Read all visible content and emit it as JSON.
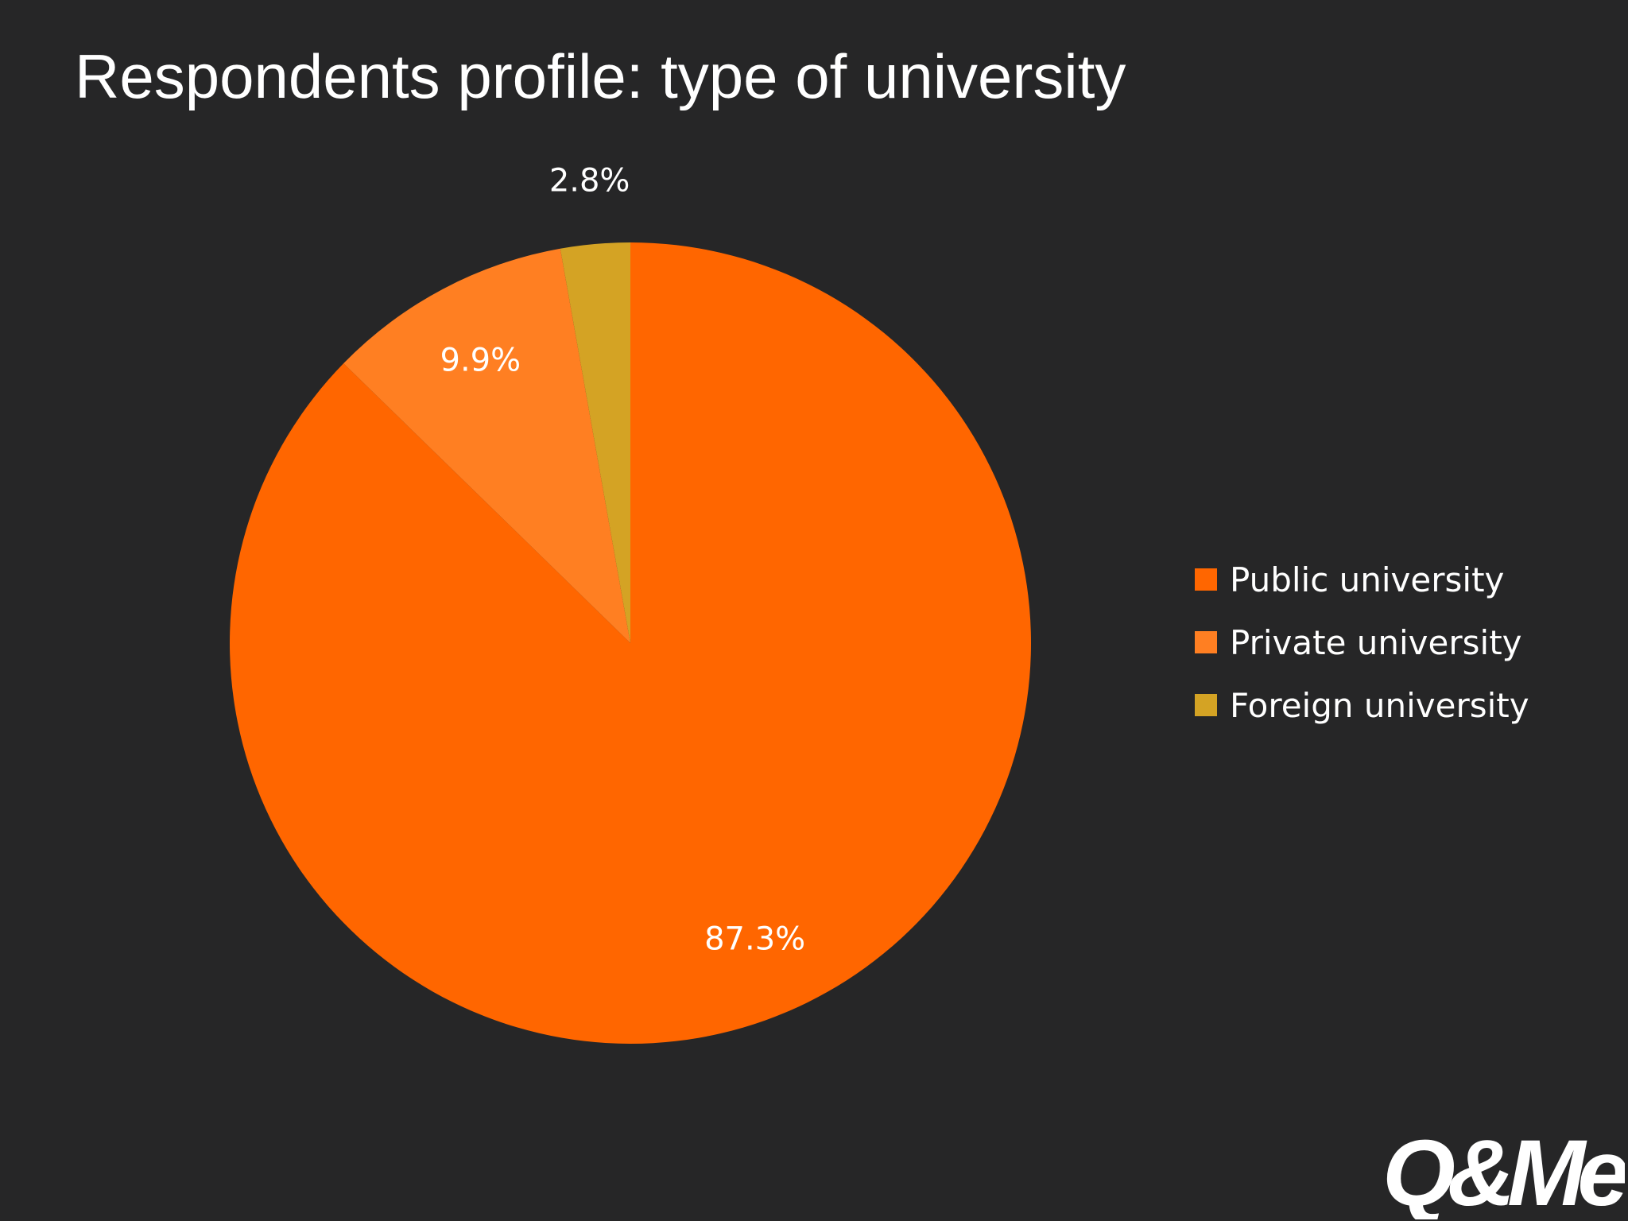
{
  "slide": {
    "title": "Respondents profile: type of university",
    "logo_text": "Q&Me"
  },
  "chart_data": {
    "type": "pie",
    "title": "Respondents profile: type of university",
    "categories": [
      "Public university",
      "Private university",
      "Foreign university"
    ],
    "values": [
      87.3,
      9.9,
      2.8
    ],
    "data_labels": [
      "87.3%",
      "9.9%",
      "2.8%"
    ],
    "colors": [
      "#ff6600",
      "#ff7f22",
      "#d4a324"
    ],
    "start_angle_deg": 0,
    "direction": "clockwise",
    "legend_position": "right"
  }
}
